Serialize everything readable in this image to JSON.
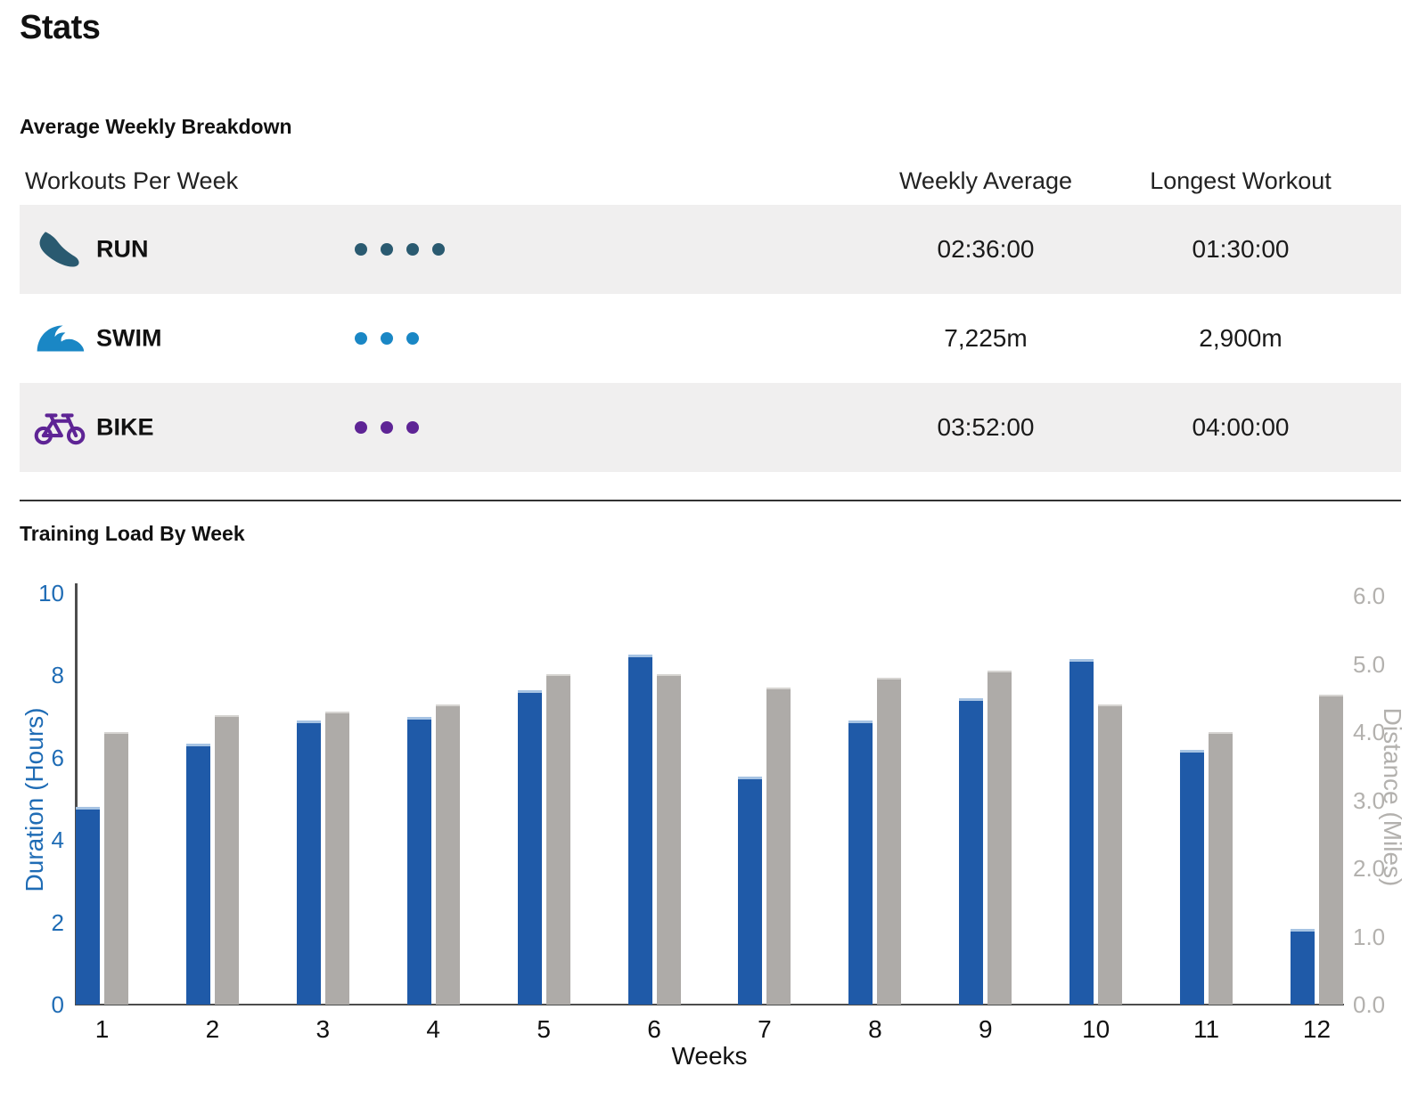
{
  "page": {
    "title": "Stats"
  },
  "breakdown": {
    "title": "Average Weekly Breakdown",
    "col_workouts": "Workouts Per Week",
    "col_weekly_avg": "Weekly Average",
    "col_longest": "Longest Workout",
    "rows": [
      {
        "sport": "RUN",
        "icon": "run-shoe-icon",
        "color": "#2a5a70",
        "workouts_per_week": 4,
        "weekly_average": "02:36:00",
        "longest_workout": "01:30:00"
      },
      {
        "sport": "SWIM",
        "icon": "swim-wave-icon",
        "color": "#1a87c5",
        "workouts_per_week": 3,
        "weekly_average": "7,225m",
        "longest_workout": "2,900m"
      },
      {
        "sport": "BIKE",
        "icon": "bike-icon",
        "color": "#5e2495",
        "workouts_per_week": 3,
        "weekly_average": "03:52:00",
        "longest_workout": "04:00:00"
      }
    ]
  },
  "chart": {
    "title": "Training Load By Week"
  },
  "chart_data": {
    "type": "bar",
    "title": "Training Load By Week",
    "categories": [
      "1",
      "2",
      "3",
      "4",
      "5",
      "6",
      "7",
      "8",
      "9",
      "10",
      "11",
      "12"
    ],
    "series": [
      {
        "name": "Duration",
        "axis": "left",
        "color": "#1f5aa8",
        "values": [
          4.8,
          6.35,
          6.9,
          7.0,
          7.65,
          8.5,
          5.55,
          6.9,
          7.45,
          8.4,
          6.2,
          1.85
        ]
      },
      {
        "name": "Distance",
        "axis": "right",
        "color": "#aeaba8",
        "values": [
          4.0,
          4.25,
          4.3,
          4.4,
          4.85,
          4.85,
          4.65,
          4.8,
          4.9,
          4.4,
          4.0,
          4.55
        ]
      }
    ],
    "xlabel": "Weeks",
    "left_axis": {
      "label": "Duration (Hours)",
      "ticks": [
        "0",
        "2",
        "4",
        "6",
        "8",
        "10"
      ],
      "range": [
        0,
        10
      ],
      "color": "#1f6cb5"
    },
    "right_axis": {
      "label": "Distance (Miles)",
      "ticks": [
        "0.0",
        "1.0",
        "2.0",
        "3.0",
        "4.0",
        "5.0",
        "6.0"
      ],
      "range": [
        0,
        6
      ],
      "color": "#b3b1ae"
    },
    "grid": false,
    "legend": "none"
  }
}
